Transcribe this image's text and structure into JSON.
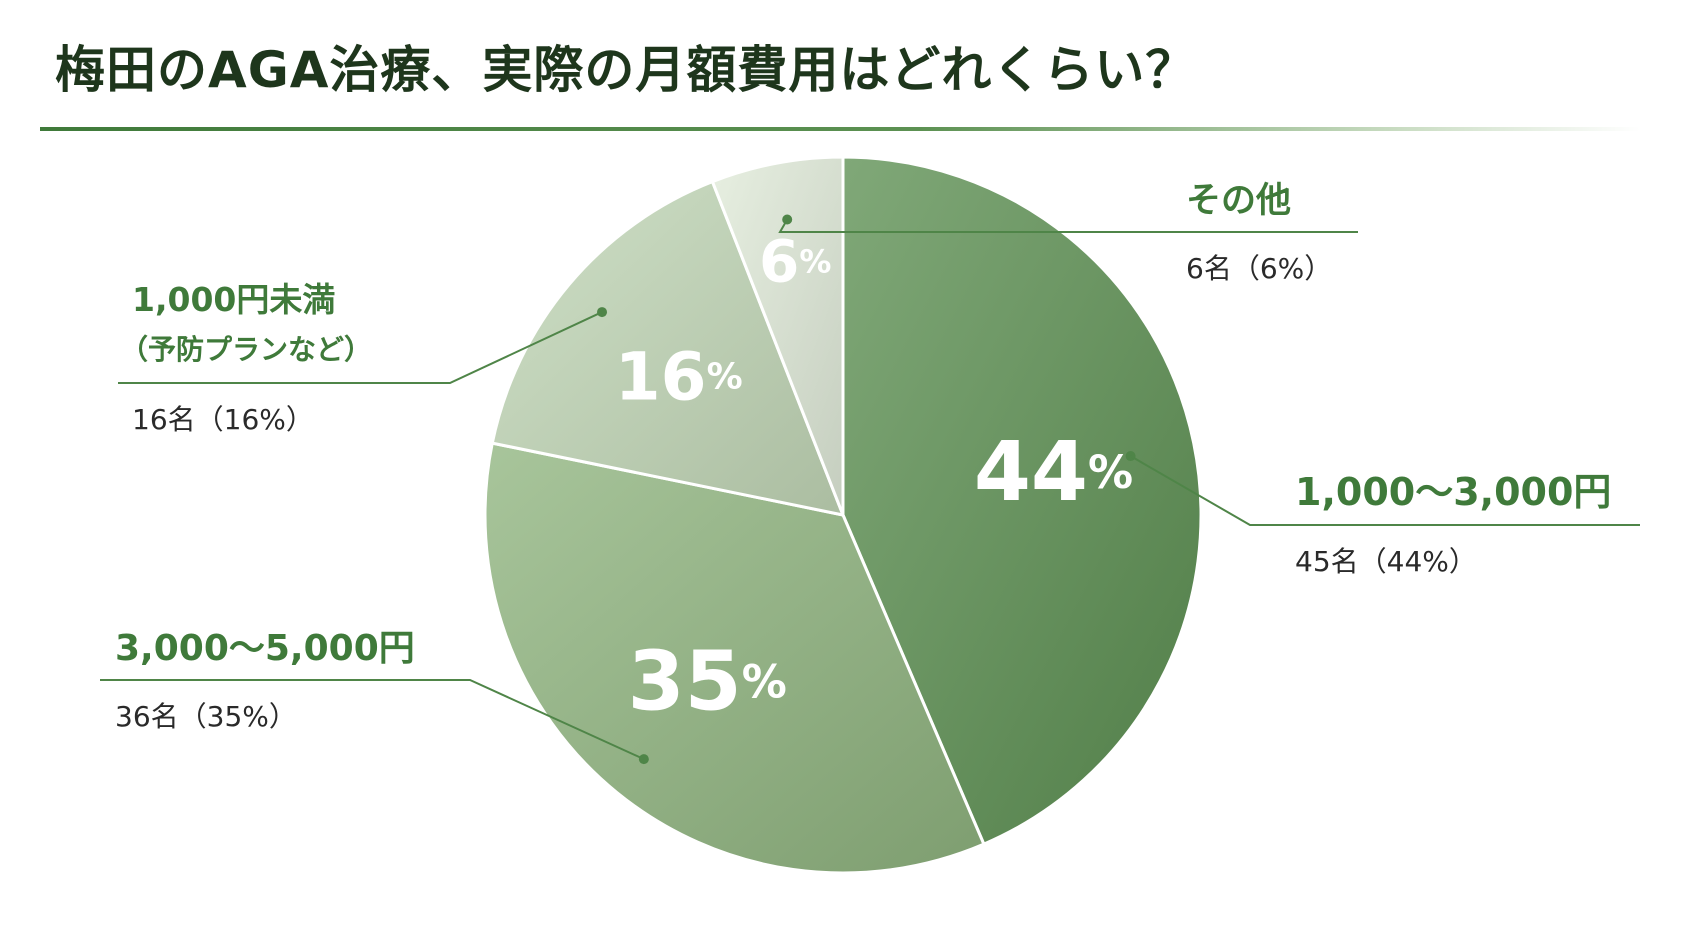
{
  "title": "梅田のAGA治療、実際の月額費用はどれくらい？",
  "chart_data": {
    "type": "pie",
    "title": "梅田のAGA治療、実際の月額費用はどれくらい？",
    "slices": [
      {
        "name": "1,000〜3,000円",
        "percent": 44,
        "count": 45,
        "detail": "45名（44%）",
        "color": "#5c8f52"
      },
      {
        "name": "3,000〜5,000円",
        "percent": 35,
        "count": 36,
        "detail": "36名（35%）",
        "color": "#8fb47f"
      },
      {
        "name": "1,000円未満",
        "sublabel": "（予防プランなど）",
        "percent": 16,
        "count": 16,
        "detail": "16名（16%）",
        "color": "#c2d7b7"
      },
      {
        "name": "その他",
        "percent": 6,
        "count": 6,
        "detail": "6名（6%）",
        "color": "#e0ead9"
      }
    ],
    "percent_suffix": "%",
    "start_angle_deg": 0,
    "direction": "clockwise"
  },
  "colors": {
    "title": "#1e361c",
    "label": "#3f7a3a",
    "detail": "#2a2a2a",
    "leader": "#4f8548",
    "slice_border": "#ffffff"
  }
}
